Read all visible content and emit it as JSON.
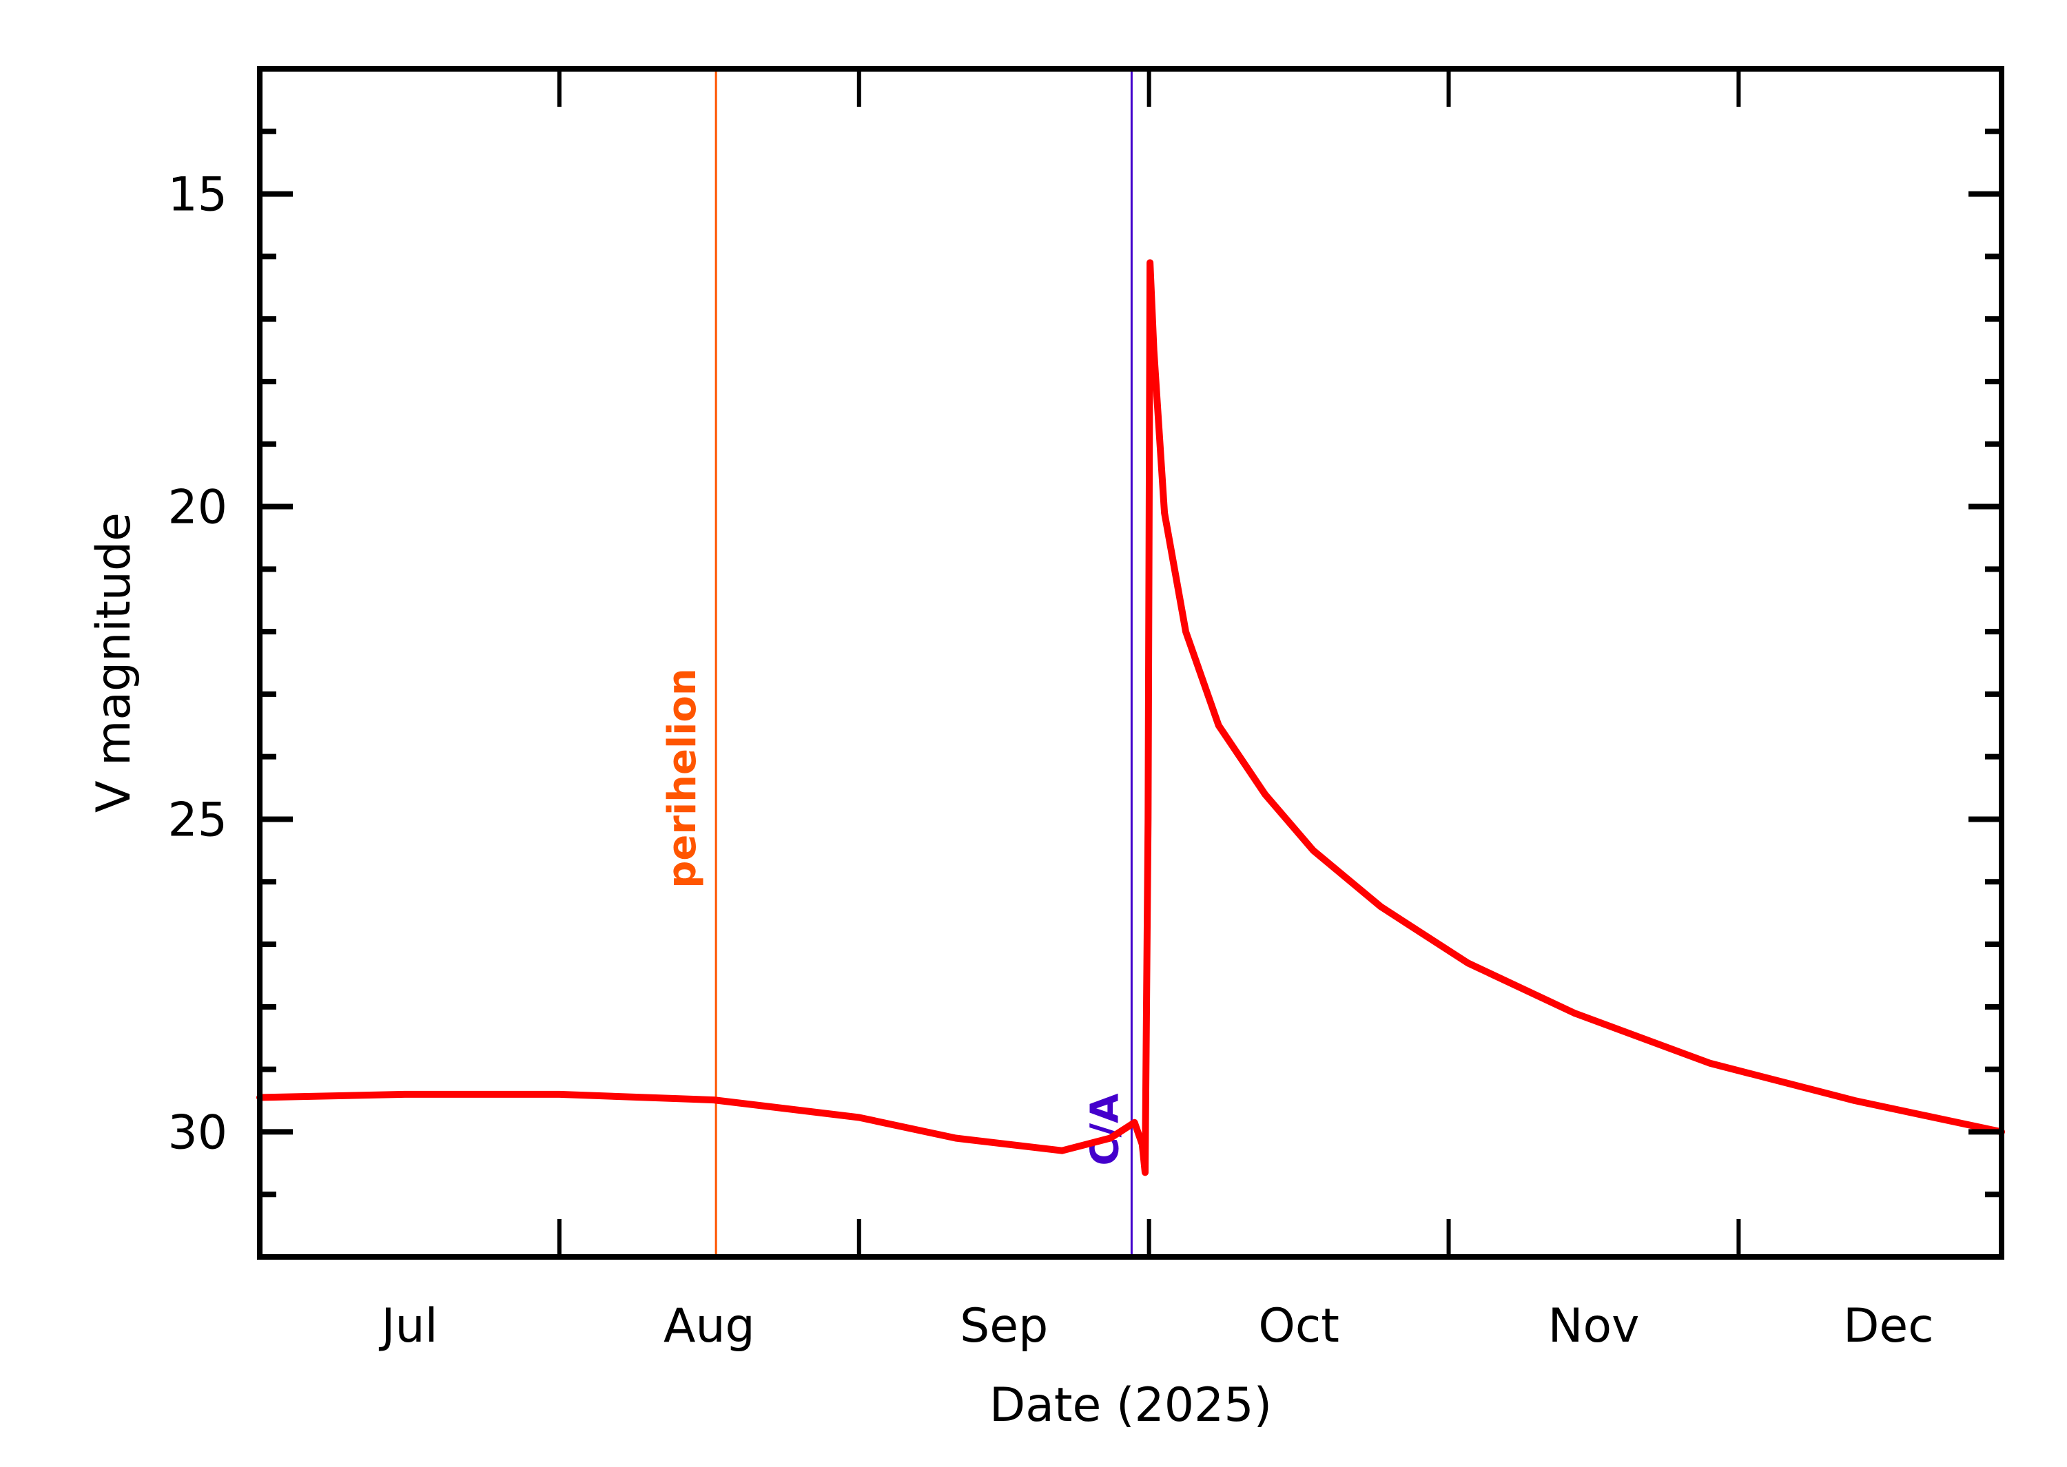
{
  "chart_data": {
    "type": "line",
    "title": "",
    "xlabel": "Date (2025)",
    "ylabel": "V magnitude",
    "x_unit": "days since 2025-07-01",
    "xlim": [
      0,
      180.2
    ],
    "ylim": [
      32,
      13
    ],
    "y_inverted": true,
    "grid": false,
    "legend": null,
    "x_tick_labels": [
      {
        "label": "Jul",
        "day": 15.5
      },
      {
        "label": "Aug",
        "day": 46.5
      },
      {
        "label": "Sep",
        "day": 77
      },
      {
        "label": "Oct",
        "day": 107.5
      },
      {
        "label": "Nov",
        "day": 138
      },
      {
        "label": "Dec",
        "day": 168.5
      }
    ],
    "x_major_ticks": [
      31,
      62,
      92,
      123,
      153
    ],
    "y_major_ticks": [
      15,
      20,
      25,
      30
    ],
    "y_minor_ticks": [
      14,
      16,
      17,
      18,
      19,
      21,
      22,
      23,
      24,
      26,
      27,
      28,
      29,
      31
    ],
    "series": [
      {
        "name": "V magnitude",
        "color": "#ff0000",
        "x": [
          0,
          15,
          31,
          47,
          62,
          72,
          83,
          88,
          90.5,
          91.3,
          91.6,
          91.9,
          92.1,
          92.5,
          93.6,
          95.8,
          99.2,
          104,
          109,
          116,
          125,
          136,
          150,
          165,
          180.2
        ],
        "values": [
          29.45,
          29.4,
          29.4,
          29.49,
          29.77,
          30.1,
          30.3,
          30.1,
          29.85,
          30.2,
          30.65,
          25.0,
          16.1,
          17.5,
          20.1,
          22.0,
          23.5,
          24.6,
          25.5,
          26.4,
          27.3,
          28.1,
          28.9,
          29.5,
          30.0
        ]
      }
    ],
    "annotations": [
      {
        "label": "perihelion",
        "day": 47.2,
        "color": "#ff5500",
        "type": "vline"
      },
      {
        "label": "C/A",
        "day": 90.2,
        "color": "#4400cc",
        "type": "vline"
      }
    ]
  }
}
